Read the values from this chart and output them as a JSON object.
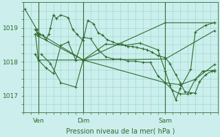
{
  "bg_color": "#cceeed",
  "grid_color": "#99ddcc",
  "line_color": "#2d6a2d",
  "xlabel": "Pression niveau de la mer( hPa )",
  "ylim": [
    1016.5,
    1019.75
  ],
  "yticks": [
    1017,
    1018,
    1019
  ],
  "xlim": [
    0,
    13.0
  ],
  "xtick_positions": [
    1.0,
    4.0,
    9.5
  ],
  "xtick_labels": [
    "Ven",
    "Dim",
    "Sam"
  ],
  "vlines": [
    1.0,
    4.0,
    9.5
  ],
  "lines": [
    {
      "x": [
        0.1,
        0.9,
        0.9,
        1.0,
        4.0,
        9.5,
        12.8
      ],
      "y": [
        1019.55,
        1018.95,
        1018.85,
        1018.85,
        1018.05,
        1019.15,
        1019.15
      ]
    },
    {
      "x": [
        0.8,
        1.0,
        1.0,
        1.3,
        1.5,
        1.7,
        1.8,
        2.0,
        2.2,
        2.5,
        3.0,
        3.3,
        3.6,
        4.0,
        4.3,
        4.7,
        5.0,
        5.3,
        5.6,
        6.0,
        6.3,
        6.6,
        7.0,
        7.3,
        7.6,
        8.0,
        8.3,
        8.6,
        9.0,
        9.5,
        9.8,
        10.2,
        10.5,
        10.8,
        11.2,
        11.5,
        11.8,
        12.2,
        12.6,
        12.8
      ],
      "y": [
        1018.95,
        1018.82,
        1018.78,
        1018.78,
        1018.65,
        1018.82,
        1019.0,
        1019.38,
        1019.28,
        1019.38,
        1019.3,
        1018.95,
        1018.8,
        1018.62,
        1019.22,
        1019.12,
        1018.85,
        1018.78,
        1018.65,
        1018.58,
        1018.52,
        1018.52,
        1018.45,
        1018.45,
        1018.42,
        1018.38,
        1018.35,
        1018.28,
        1018.18,
        1018.12,
        1017.95,
        1017.62,
        1017.38,
        1017.12,
        1017.08,
        1017.08,
        1017.42,
        1017.62,
        1017.72,
        1017.72
      ]
    },
    {
      "x": [
        0.8,
        1.0,
        4.0,
        5.5,
        6.8,
        7.8,
        9.0,
        9.5,
        9.8,
        10.2,
        10.5,
        11.2,
        11.5,
        12.2,
        12.8
      ],
      "y": [
        1018.82,
        1018.05,
        1018.05,
        1018.52,
        1018.48,
        1018.55,
        1018.35,
        1017.72,
        1017.32,
        1016.88,
        1017.22,
        1017.78,
        1018.88,
        1019.08,
        1019.15
      ]
    },
    {
      "x": [
        0.8,
        1.0,
        4.0,
        9.5,
        10.5,
        11.5,
        12.8
      ],
      "y": [
        1018.82,
        1018.75,
        1018.05,
        1017.38,
        1017.32,
        1017.48,
        1017.92
      ]
    },
    {
      "x": [
        0.8,
        1.0,
        1.5,
        2.0,
        2.5,
        3.0,
        3.5,
        4.0,
        4.5,
        5.0,
        5.5,
        6.0,
        6.5,
        7.0,
        7.5,
        8.0,
        8.5,
        9.0,
        9.5,
        10.0,
        10.5,
        11.0,
        11.5,
        12.0,
        12.8
      ],
      "y": [
        1018.22,
        1018.05,
        1017.82,
        1017.65,
        1018.48,
        1018.58,
        1018.05,
        1018.72,
        1018.68,
        1018.35,
        1018.15,
        1018.08,
        1018.08,
        1018.02,
        1018.02,
        1017.98,
        1017.98,
        1017.58,
        1017.38,
        1017.15,
        1017.05,
        1017.05,
        1017.48,
        1017.72,
        1017.75
      ]
    },
    {
      "x": [
        1.2,
        1.8,
        2.5,
        3.5,
        4.0,
        9.5,
        12.8
      ],
      "y": [
        1018.22,
        1017.95,
        1017.38,
        1017.25,
        1018.05,
        1018.08,
        1018.92
      ]
    }
  ]
}
